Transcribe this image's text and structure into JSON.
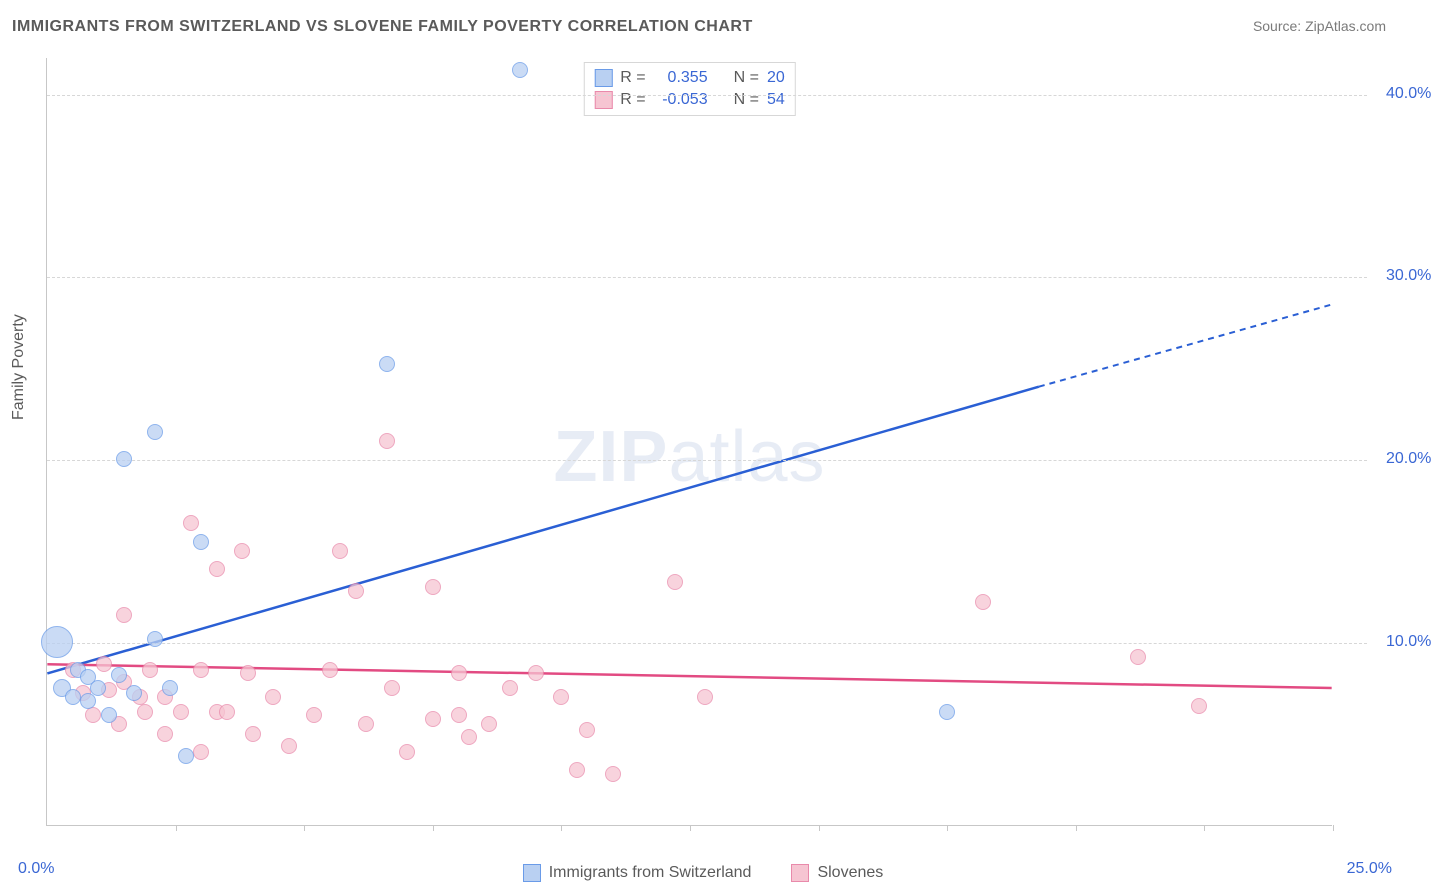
{
  "title": "IMMIGRANTS FROM SWITZERLAND VS SLOVENE FAMILY POVERTY CORRELATION CHART",
  "source_label": "Source: ",
  "source_value": "ZipAtlas.com",
  "y_axis_label": "Family Poverty",
  "chart": {
    "type": "scatter",
    "background_color": "#ffffff",
    "grid_color": "#d7d7d7",
    "axis_color": "#c7c7c7",
    "text_color": "#5a5a5a",
    "value_color": "#3a67d4",
    "xlim": [
      0,
      25
    ],
    "ylim": [
      0,
      42
    ],
    "x_min_label": "0.0%",
    "x_max_label": "25.0%",
    "y_gridlines": [
      10,
      20,
      30,
      40
    ],
    "y_tick_labels": [
      "10.0%",
      "20.0%",
      "30.0%",
      "40.0%"
    ],
    "x_tick_positions": [
      2.5,
      5.0,
      7.5,
      10.0,
      12.5,
      15.0,
      17.5,
      20.0,
      22.5,
      25.0
    ],
    "series": [
      {
        "name": "Immigrants from Switzerland",
        "color_fill": "#b9d0f2",
        "color_stroke": "#6a9be8",
        "trend_color": "#2a5fd4",
        "R": "0.355",
        "N": "20",
        "trend": {
          "x1": 0,
          "y1": 8.3,
          "x2": 19.3,
          "y2": 24.0,
          "x_dash_to": 25,
          "y_dash_to": 28.5
        },
        "points": [
          {
            "x": 0.2,
            "y": 10.0,
            "r": 16
          },
          {
            "x": 0.3,
            "y": 7.5,
            "r": 9
          },
          {
            "x": 0.5,
            "y": 7.0,
            "r": 8
          },
          {
            "x": 0.6,
            "y": 8.5,
            "r": 8
          },
          {
            "x": 0.8,
            "y": 6.8,
            "r": 8
          },
          {
            "x": 0.8,
            "y": 8.1,
            "r": 8
          },
          {
            "x": 1.0,
            "y": 7.5,
            "r": 8
          },
          {
            "x": 1.2,
            "y": 6.0,
            "r": 8
          },
          {
            "x": 1.4,
            "y": 8.2,
            "r": 8
          },
          {
            "x": 1.5,
            "y": 20.0,
            "r": 8
          },
          {
            "x": 1.7,
            "y": 7.2,
            "r": 8
          },
          {
            "x": 2.1,
            "y": 21.5,
            "r": 8
          },
          {
            "x": 2.1,
            "y": 10.2,
            "r": 8
          },
          {
            "x": 2.4,
            "y": 7.5,
            "r": 8
          },
          {
            "x": 2.7,
            "y": 3.8,
            "r": 8
          },
          {
            "x": 3.0,
            "y": 15.5,
            "r": 8
          },
          {
            "x": 6.6,
            "y": 25.2,
            "r": 8
          },
          {
            "x": 9.2,
            "y": 41.3,
            "r": 8
          },
          {
            "x": 17.5,
            "y": 6.2,
            "r": 8
          }
        ]
      },
      {
        "name": "Slovenes",
        "color_fill": "#f6c5d2",
        "color_stroke": "#e98aab",
        "trend_color": "#e24b82",
        "R": "-0.053",
        "N": "54",
        "trend": {
          "x1": 0,
          "y1": 8.8,
          "x2": 25,
          "y2": 7.5,
          "x_dash_to": 25,
          "y_dash_to": 7.5
        },
        "points": [
          {
            "x": 0.5,
            "y": 8.5,
            "r": 8
          },
          {
            "x": 0.7,
            "y": 7.2,
            "r": 8
          },
          {
            "x": 0.9,
            "y": 6.0,
            "r": 8
          },
          {
            "x": 1.1,
            "y": 8.8,
            "r": 8
          },
          {
            "x": 1.2,
            "y": 7.4,
            "r": 8
          },
          {
            "x": 1.4,
            "y": 5.5,
            "r": 8
          },
          {
            "x": 1.5,
            "y": 7.8,
            "r": 8
          },
          {
            "x": 1.5,
            "y": 11.5,
            "r": 8
          },
          {
            "x": 1.8,
            "y": 7.0,
            "r": 8
          },
          {
            "x": 1.9,
            "y": 6.2,
            "r": 8
          },
          {
            "x": 2.0,
            "y": 8.5,
            "r": 8
          },
          {
            "x": 2.3,
            "y": 5.0,
            "r": 8
          },
          {
            "x": 2.3,
            "y": 7.0,
            "r": 8
          },
          {
            "x": 2.6,
            "y": 6.2,
            "r": 8
          },
          {
            "x": 2.8,
            "y": 16.5,
            "r": 8
          },
          {
            "x": 3.0,
            "y": 8.5,
            "r": 8
          },
          {
            "x": 3.0,
            "y": 4.0,
            "r": 8
          },
          {
            "x": 3.3,
            "y": 14.0,
            "r": 8
          },
          {
            "x": 3.3,
            "y": 6.2,
            "r": 8
          },
          {
            "x": 3.5,
            "y": 6.2,
            "r": 8
          },
          {
            "x": 3.8,
            "y": 15.0,
            "r": 8
          },
          {
            "x": 3.9,
            "y": 8.3,
            "r": 8
          },
          {
            "x": 4.0,
            "y": 5.0,
            "r": 8
          },
          {
            "x": 4.4,
            "y": 7.0,
            "r": 8
          },
          {
            "x": 4.7,
            "y": 4.3,
            "r": 8
          },
          {
            "x": 5.2,
            "y": 6.0,
            "r": 8
          },
          {
            "x": 5.5,
            "y": 8.5,
            "r": 8
          },
          {
            "x": 5.7,
            "y": 15.0,
            "r": 8
          },
          {
            "x": 6.0,
            "y": 12.8,
            "r": 8
          },
          {
            "x": 6.2,
            "y": 5.5,
            "r": 8
          },
          {
            "x": 6.6,
            "y": 21.0,
            "r": 8
          },
          {
            "x": 6.7,
            "y": 7.5,
            "r": 8
          },
          {
            "x": 7.0,
            "y": 4.0,
            "r": 8
          },
          {
            "x": 7.5,
            "y": 13.0,
            "r": 8
          },
          {
            "x": 7.5,
            "y": 5.8,
            "r": 8
          },
          {
            "x": 8.0,
            "y": 6.0,
            "r": 8
          },
          {
            "x": 8.0,
            "y": 8.3,
            "r": 8
          },
          {
            "x": 8.2,
            "y": 4.8,
            "r": 8
          },
          {
            "x": 8.6,
            "y": 5.5,
            "r": 8
          },
          {
            "x": 9.0,
            "y": 7.5,
            "r": 8
          },
          {
            "x": 9.5,
            "y": 8.3,
            "r": 8
          },
          {
            "x": 10.0,
            "y": 7.0,
            "r": 8
          },
          {
            "x": 10.3,
            "y": 3.0,
            "r": 8
          },
          {
            "x": 10.5,
            "y": 5.2,
            "r": 8
          },
          {
            "x": 11.0,
            "y": 2.8,
            "r": 8
          },
          {
            "x": 12.2,
            "y": 13.3,
            "r": 8
          },
          {
            "x": 12.8,
            "y": 7.0,
            "r": 8
          },
          {
            "x": 18.2,
            "y": 12.2,
            "r": 8
          },
          {
            "x": 21.2,
            "y": 9.2,
            "r": 8
          },
          {
            "x": 22.4,
            "y": 6.5,
            "r": 8
          }
        ]
      }
    ],
    "legend_top": {
      "r_label": "R = ",
      "n_label": "N = "
    },
    "legend_bottom": [
      {
        "label": "Immigrants from Switzerland",
        "fill": "#b9d0f2",
        "stroke": "#6a9be8"
      },
      {
        "label": "Slovenes",
        "fill": "#f6c5d2",
        "stroke": "#e98aab"
      }
    ]
  },
  "watermark": {
    "part1": "ZIP",
    "part2": "atlas"
  }
}
